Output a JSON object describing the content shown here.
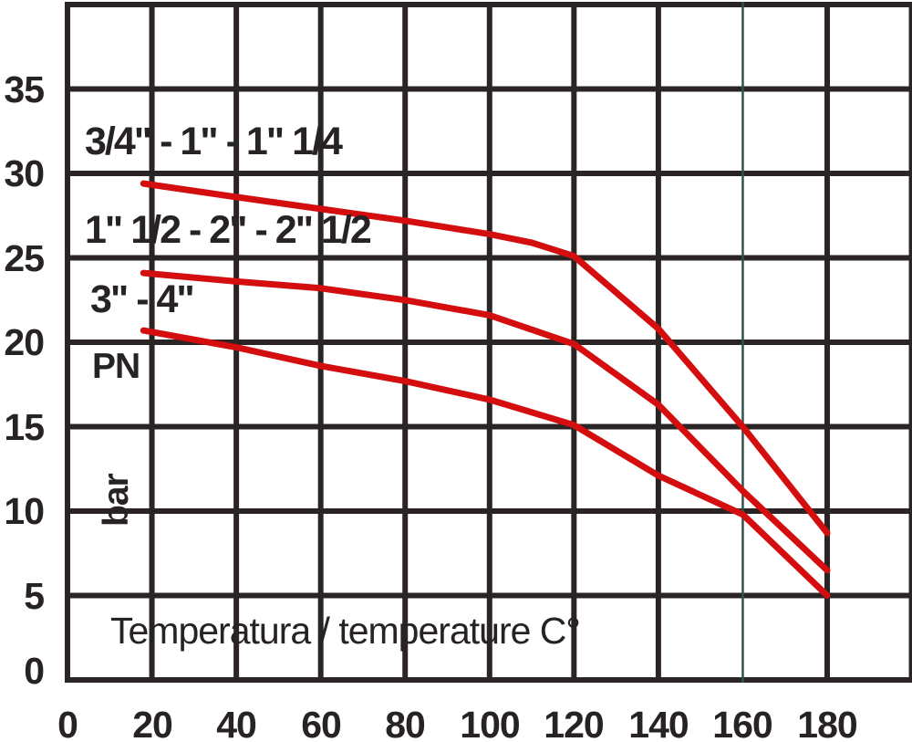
{
  "chart_data": {
    "type": "line",
    "title": "",
    "xlabel": "Temperatura / temperature C°",
    "ylabel": "PN",
    "ylabel_unit": "bar",
    "x_ticks": [
      0,
      20,
      40,
      60,
      80,
      100,
      120,
      140,
      160,
      180
    ],
    "y_ticks": [
      0,
      5,
      10,
      15,
      20,
      25,
      30,
      35
    ],
    "xlim": [
      0,
      200
    ],
    "ylim": [
      0,
      40
    ],
    "x_grid_step": 20,
    "y_grid_step": 5,
    "grid": true,
    "legend_position": "inline-left-above-each-curve",
    "highlight_gridline": {
      "x": 160,
      "color": "#33524c"
    },
    "series_color": "#d40d0e",
    "series": [
      {
        "name": "3/4\" - 1\" - 1\" 1/4",
        "points": [
          [
            18,
            29.4
          ],
          [
            40,
            28.6
          ],
          [
            60,
            27.9
          ],
          [
            80,
            27.2
          ],
          [
            100,
            26.4
          ],
          [
            110,
            25.9
          ],
          [
            120,
            25.1
          ],
          [
            140,
            20.8
          ],
          [
            160,
            15.0
          ],
          [
            180,
            8.7
          ]
        ]
      },
      {
        "name": "1\" 1/2 - 2\" - 2\" 1/2",
        "points": [
          [
            18,
            24.1
          ],
          [
            40,
            23.6
          ],
          [
            60,
            23.2
          ],
          [
            80,
            22.5
          ],
          [
            100,
            21.6
          ],
          [
            120,
            19.9
          ],
          [
            140,
            16.3
          ],
          [
            160,
            11.2
          ],
          [
            180,
            6.5
          ]
        ]
      },
      {
        "name": "3\" - 4\"",
        "points": [
          [
            18,
            20.7
          ],
          [
            40,
            19.7
          ],
          [
            60,
            18.6
          ],
          [
            80,
            17.7
          ],
          [
            100,
            16.6
          ],
          [
            120,
            15.1
          ],
          [
            140,
            12.1
          ],
          [
            160,
            9.8
          ],
          [
            180,
            5.0
          ]
        ]
      }
    ]
  },
  "labels": {
    "curve1": "3/4\" - 1\" - 1\" 1/4",
    "curve2": "1\" 1/2 - 2\" - 2\" 1/2",
    "curve3": "3\" - 4\"",
    "y_axis_name": "PN",
    "y_axis_unit": "bar",
    "x_axis_title": "Temperatura / temperature C°"
  },
  "colors": {
    "background": "#ffffff",
    "grid": "#2a2425",
    "text": "#272223",
    "curve": "#d40d0e",
    "highlight_grid": "#33524c"
  }
}
